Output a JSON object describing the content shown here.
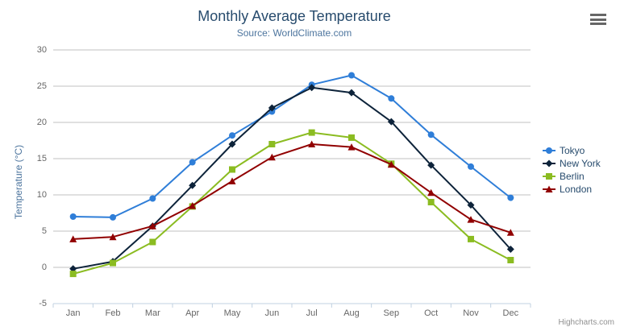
{
  "chart_data": {
    "type": "line",
    "title": "Monthly Average Temperature",
    "subtitle": "Source: WorldClimate.com",
    "xlabel": "",
    "ylabel": "Temperature (°C)",
    "categories": [
      "Jan",
      "Feb",
      "Mar",
      "Apr",
      "May",
      "Jun",
      "Jul",
      "Aug",
      "Sep",
      "Oct",
      "Nov",
      "Dec"
    ],
    "ylim": [
      -5,
      30
    ],
    "yticks": [
      -5,
      0,
      5,
      10,
      15,
      20,
      25,
      30
    ],
    "grid": true,
    "legend_position": "right",
    "series": [
      {
        "name": "Tokyo",
        "color": "#2f7ed8",
        "marker": "circle",
        "values": [
          7.0,
          6.9,
          9.5,
          14.5,
          18.2,
          21.5,
          25.2,
          26.5,
          23.3,
          18.3,
          13.9,
          9.6
        ]
      },
      {
        "name": "New York",
        "color": "#0d233a",
        "marker": "diamond",
        "values": [
          -0.2,
          0.8,
          5.7,
          11.3,
          17.0,
          22.0,
          24.8,
          24.1,
          20.1,
          14.1,
          8.6,
          2.5
        ]
      },
      {
        "name": "Berlin",
        "color": "#8bbc21",
        "marker": "square",
        "values": [
          -0.9,
          0.6,
          3.5,
          8.4,
          13.5,
          17.0,
          18.6,
          17.9,
          14.3,
          9.0,
          3.9,
          1.0
        ]
      },
      {
        "name": "London",
        "color": "#910000",
        "marker": "triangle",
        "values": [
          3.9,
          4.2,
          5.7,
          8.5,
          11.9,
          15.2,
          17.0,
          16.6,
          14.2,
          10.3,
          6.6,
          4.8
        ]
      }
    ],
    "credits": "Highcharts.com"
  },
  "style": {
    "grid_color": "#c0c0c0",
    "axis_color": "#c0d0e0",
    "label_color": "#666666"
  }
}
